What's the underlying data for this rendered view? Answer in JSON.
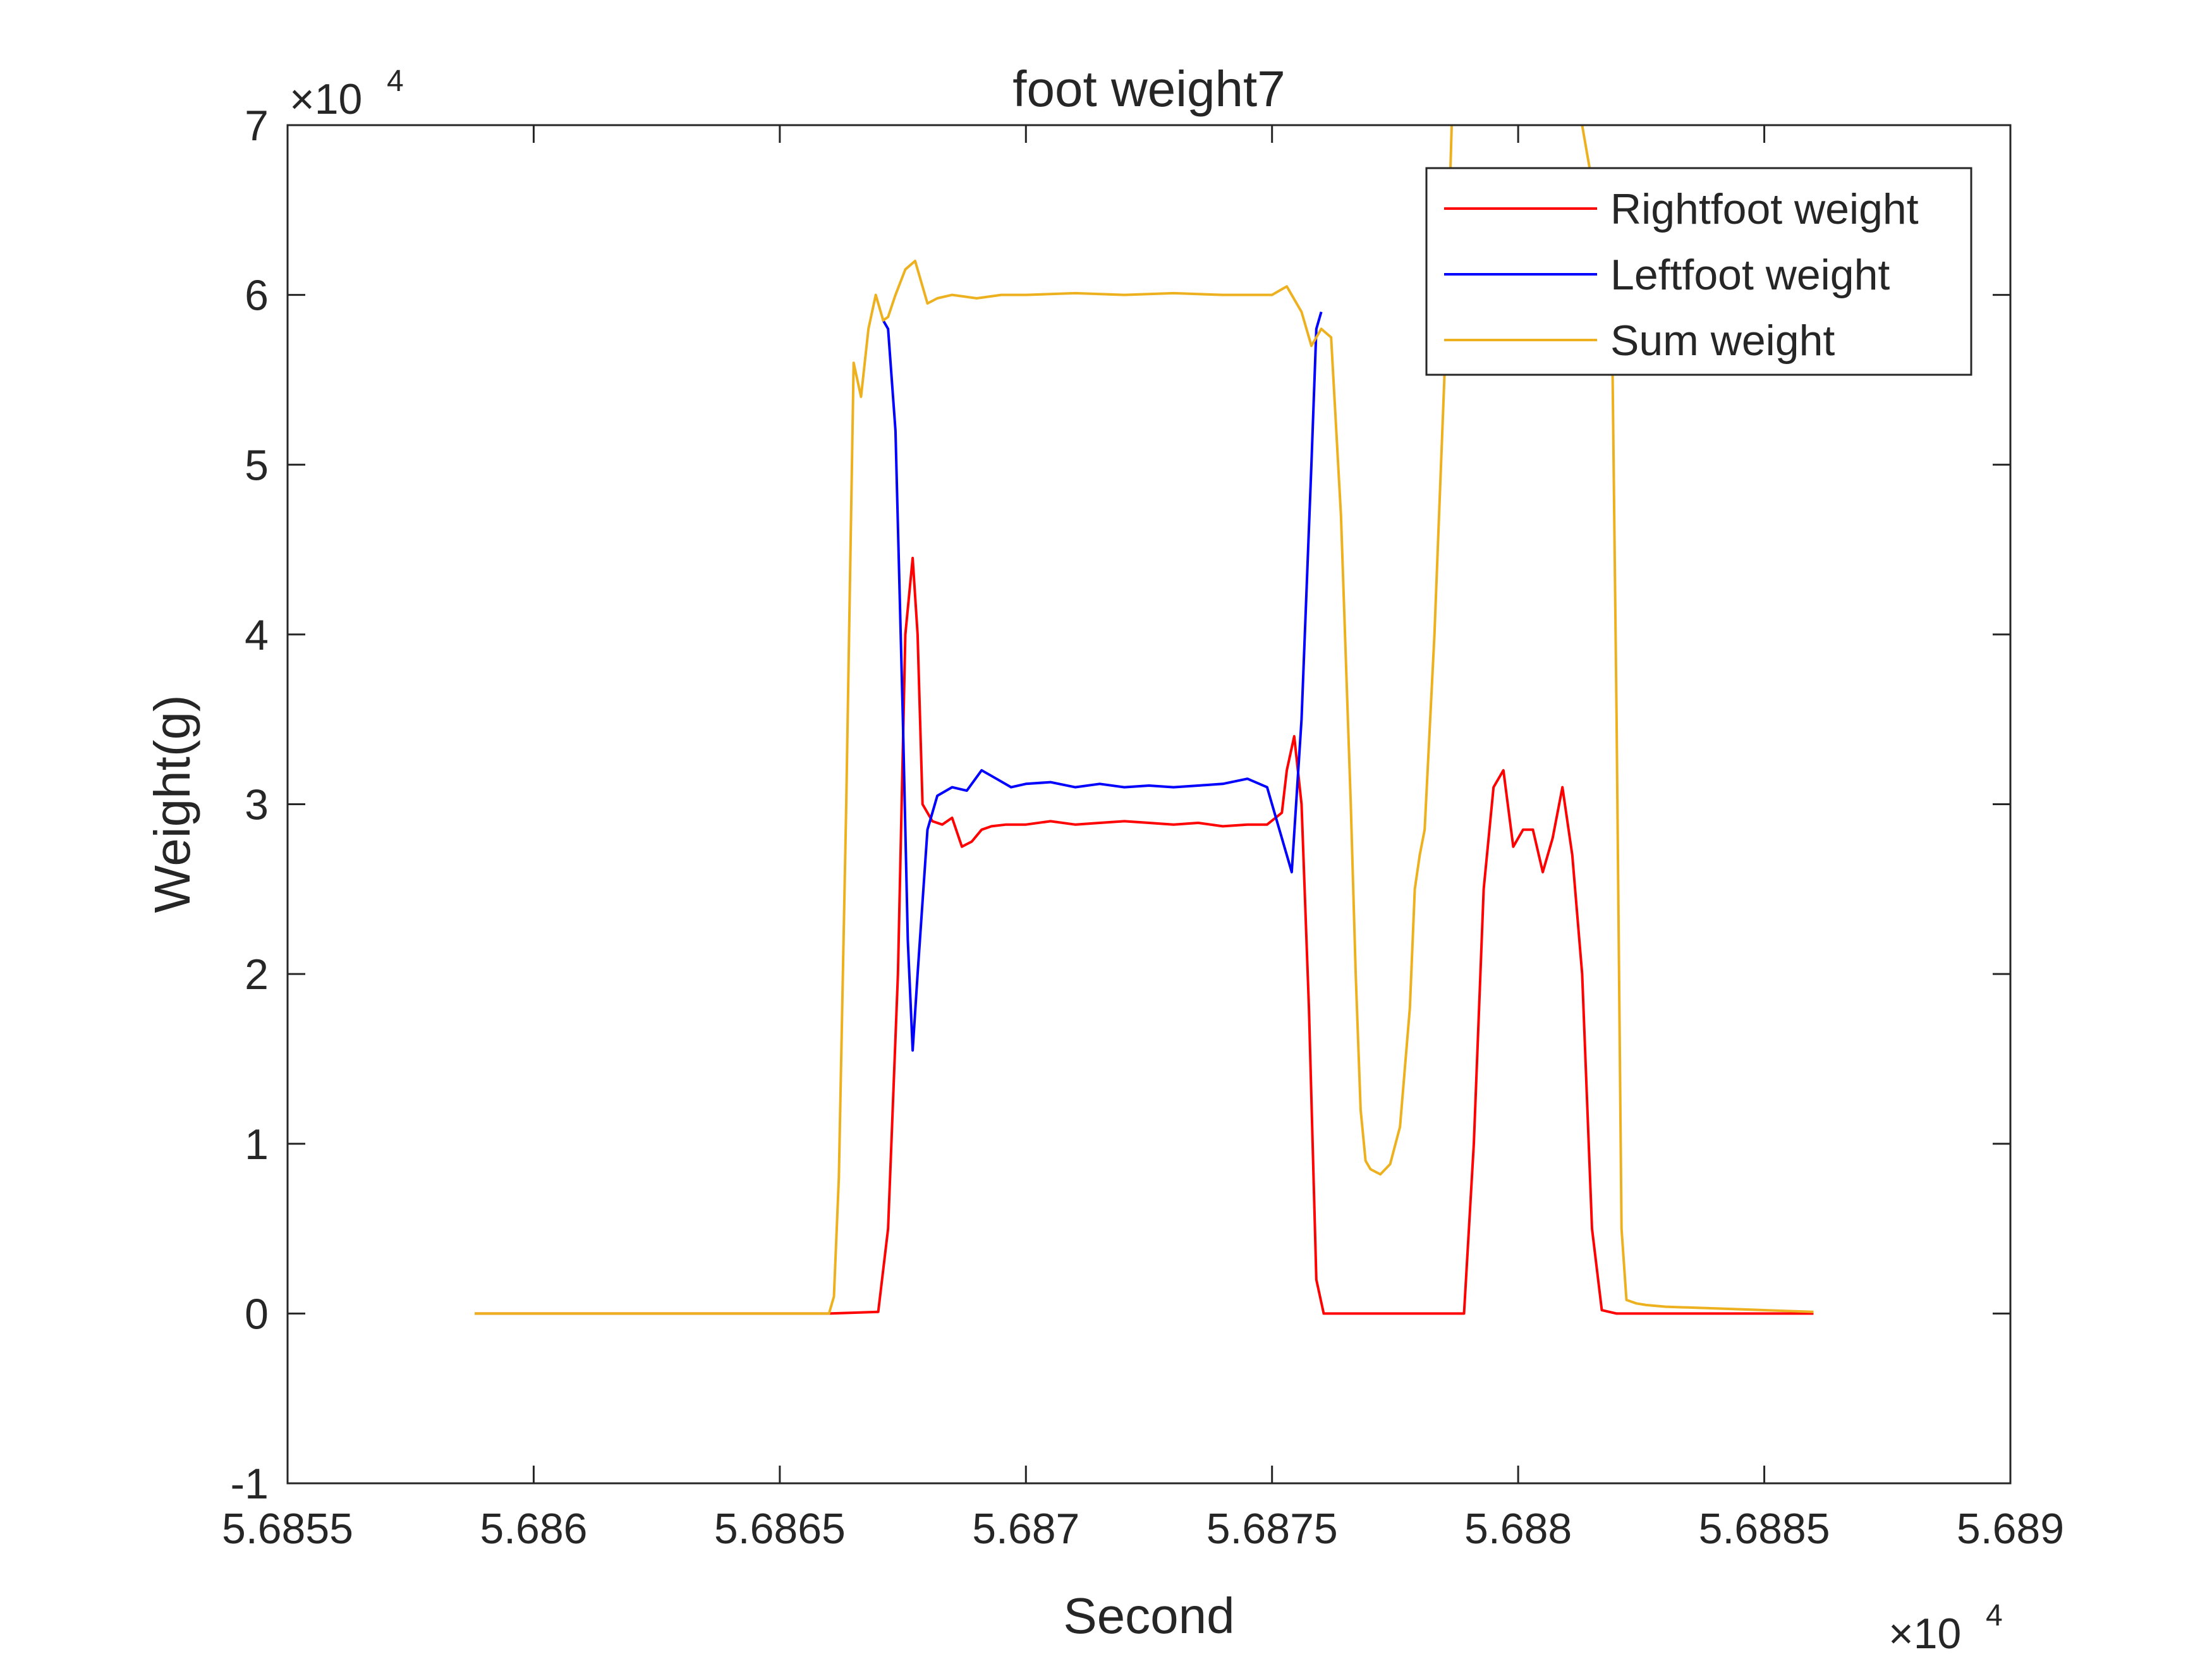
{
  "chart_data": {
    "type": "line",
    "title": "foot weight7",
    "xlabel": "Second",
    "ylabel": "Weight(g)",
    "x_exponent": "×10",
    "x_exponent_power": "4",
    "y_exponent": "×10",
    "y_exponent_power": "4",
    "xlim": [
      56855,
      56890
    ],
    "ylim": [
      -10000,
      70000
    ],
    "x_ticks": [
      56855,
      56860,
      56865,
      56870,
      56875,
      56880,
      56885,
      56890
    ],
    "x_tick_labels": [
      "5.6855",
      "5.686",
      "5.6865",
      "5.687",
      "5.6875",
      "5.688",
      "5.6885",
      "5.689"
    ],
    "y_ticks": [
      -10000,
      0,
      10000,
      20000,
      30000,
      40000,
      50000,
      60000,
      70000
    ],
    "y_tick_labels": [
      "-1",
      "0",
      "1",
      "2",
      "3",
      "4",
      "5",
      "6",
      "7"
    ],
    "grid": false,
    "legend_position": "top-right",
    "series": [
      {
        "name": "Rightfoot weight",
        "color": "#ff0000",
        "x": [
          56858.8,
          56866.0,
          56867.0,
          56867.2,
          56867.4,
          56867.55,
          56867.7,
          56867.8,
          56867.9,
          56868.1,
          56868.3,
          56868.5,
          56868.7,
          56868.9,
          56869.1,
          56869.3,
          56869.6,
          56870.0,
          56870.5,
          56871.0,
          56871.5,
          56872.0,
          56872.5,
          56873.0,
          56873.5,
          56874.0,
          56874.5,
          56874.9,
          56875.2,
          56875.3,
          56875.45,
          56875.6,
          56875.75,
          56875.9,
          56876.05,
          56876.6,
          56877.5,
          56878.5,
          56878.9,
          56879.1,
          56879.3,
          56879.5,
          56879.7,
          56879.9,
          56880.1,
          56880.3,
          56880.5,
          56880.7,
          56880.9,
          56881.1,
          56881.3,
          56881.5,
          56881.7,
          56882.0,
          56883.0,
          56884.0,
          56886.0
        ],
        "values": [
          0,
          0,
          100,
          5000,
          20000,
          40000,
          44500,
          40000,
          30000,
          29000,
          28800,
          29200,
          27500,
          27800,
          28500,
          28700,
          28800,
          28800,
          29000,
          28800,
          28900,
          29000,
          28900,
          28800,
          28900,
          28700,
          28800,
          28800,
          29500,
          32000,
          34000,
          30000,
          18000,
          2000,
          0,
          0,
          0,
          0,
          0,
          10000,
          25000,
          31000,
          32000,
          27500,
          28500,
          28500,
          26000,
          28000,
          31000,
          27000,
          20000,
          5000,
          200,
          0,
          0,
          0,
          0
        ]
      },
      {
        "name": "Leftfoot weight",
        "color": "#0000ff",
        "x": [
          56867.1,
          56867.2,
          56867.35,
          56867.5,
          56867.6,
          56867.7,
          56867.8,
          56868.0,
          56868.2,
          56868.5,
          56868.8,
          56869.1,
          56869.4,
          56869.7,
          56870.0,
          56870.5,
          56871.0,
          56871.5,
          56872.0,
          56872.5,
          56873.0,
          56873.5,
          56874.0,
          56874.5,
          56874.9,
          56875.1,
          56875.3,
          56875.4,
          56875.6,
          56875.8,
          56875.9,
          56876.0
        ],
        "values": [
          58500,
          58000,
          52000,
          35000,
          22000,
          15500,
          20000,
          28500,
          30500,
          31000,
          30800,
          32000,
          31500,
          31000,
          31200,
          31300,
          31000,
          31200,
          31000,
          31100,
          31000,
          31100,
          31200,
          31500,
          31000,
          29000,
          27000,
          26000,
          35000,
          50000,
          58000,
          59000
        ]
      },
      {
        "name": "Sum weight",
        "color": "#edb120",
        "x": [
          56858.8,
          56862.0,
          56865.0,
          56866.0,
          56866.1,
          56866.2,
          56866.35,
          56866.5,
          56866.65,
          56866.8,
          56866.95,
          56867.1,
          56867.2,
          56867.35,
          56867.55,
          56867.75,
          56867.9,
          56868.0,
          56868.2,
          56868.5,
          56869.0,
          56869.5,
          56870.0,
          56871.0,
          56872.0,
          56873.0,
          56874.0,
          56874.5,
          56875.0,
          56875.3,
          56875.6,
          56875.8,
          56876.0,
          56876.2,
          56876.4,
          56876.6,
          56876.7,
          56876.8,
          56876.9,
          56877.0,
          56877.2,
          56877.4,
          56877.6,
          56877.8,
          56877.9,
          56878.0,
          56878.1,
          56878.3,
          56878.5,
          56878.6,
          56878.7,
          56879.0,
          56880.0,
          56881.0,
          56881.9,
          56882.0,
          56882.1,
          56882.2,
          56882.4,
          56882.6,
          56883.0,
          56884.0,
          56885.0,
          56886.0
        ],
        "values": [
          0,
          0,
          0,
          0,
          1000,
          8000,
          30000,
          56000,
          54000,
          58000,
          60000,
          58500,
          58700,
          60000,
          61500,
          62000,
          60500,
          59500,
          59800,
          60000,
          59800,
          60000,
          60000,
          60100,
          60000,
          60100,
          60000,
          60000,
          60000,
          60500,
          59000,
          57000,
          58000,
          57500,
          47000,
          30000,
          20000,
          12000,
          9000,
          8500,
          8200,
          8800,
          11000,
          18000,
          25000,
          27000,
          28500,
          40000,
          55000,
          65000,
          75000,
          75000,
          75000,
          75000,
          60000,
          35000,
          5000,
          800,
          600,
          500,
          400,
          300,
          200,
          100
        ]
      }
    ]
  }
}
